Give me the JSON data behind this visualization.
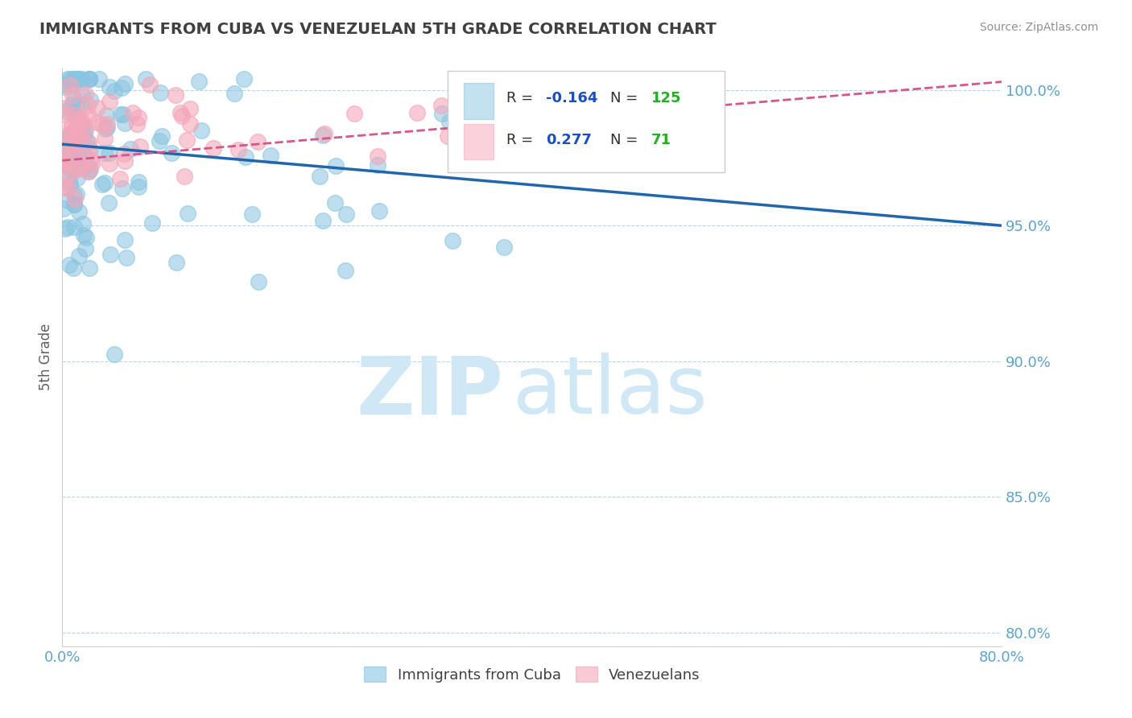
{
  "title": "IMMIGRANTS FROM CUBA VS VENEZUELAN 5TH GRADE CORRELATION CHART",
  "source_text": "Source: ZipAtlas.com",
  "ylabel": "5th Grade",
  "x_min": 0.0,
  "x_max": 0.8,
  "y_min": 0.795,
  "y_max": 1.008,
  "y_ticks": [
    0.8,
    0.85,
    0.9,
    0.95,
    1.0
  ],
  "y_tick_labels": [
    "80.0%",
    "85.0%",
    "90.0%",
    "95.0%",
    "100.0%"
  ],
  "x_ticks": [
    0.0,
    0.1,
    0.2,
    0.3,
    0.4,
    0.5,
    0.6,
    0.7,
    0.8
  ],
  "x_tick_labels": [
    "0.0%",
    "",
    "",
    "",
    "",
    "",
    "",
    "",
    "80.0%"
  ],
  "cuba_R": -0.164,
  "cuba_N": 125,
  "venezuela_R": 0.277,
  "venezuela_N": 71,
  "cuba_color": "#89c4e1",
  "venezuela_color": "#f4a7b9",
  "cuba_line_color": "#2166ac",
  "venezuela_line_color": "#d6558a",
  "background_color": "#ffffff",
  "grid_color": "#b8d4eb",
  "title_color": "#404040",
  "axis_label_color": "#606060",
  "tick_label_color": "#5ba3d0",
  "source_color": "#909090",
  "watermark_color": "#d0e8f5",
  "legend_R_color": "#1a4fbd",
  "legend_N_color": "#20b020",
  "cuba_line_y0": 0.98,
  "cuba_line_y1": 0.95,
  "venezuela_line_y0": 0.974,
  "venezuela_line_y1": 1.003
}
